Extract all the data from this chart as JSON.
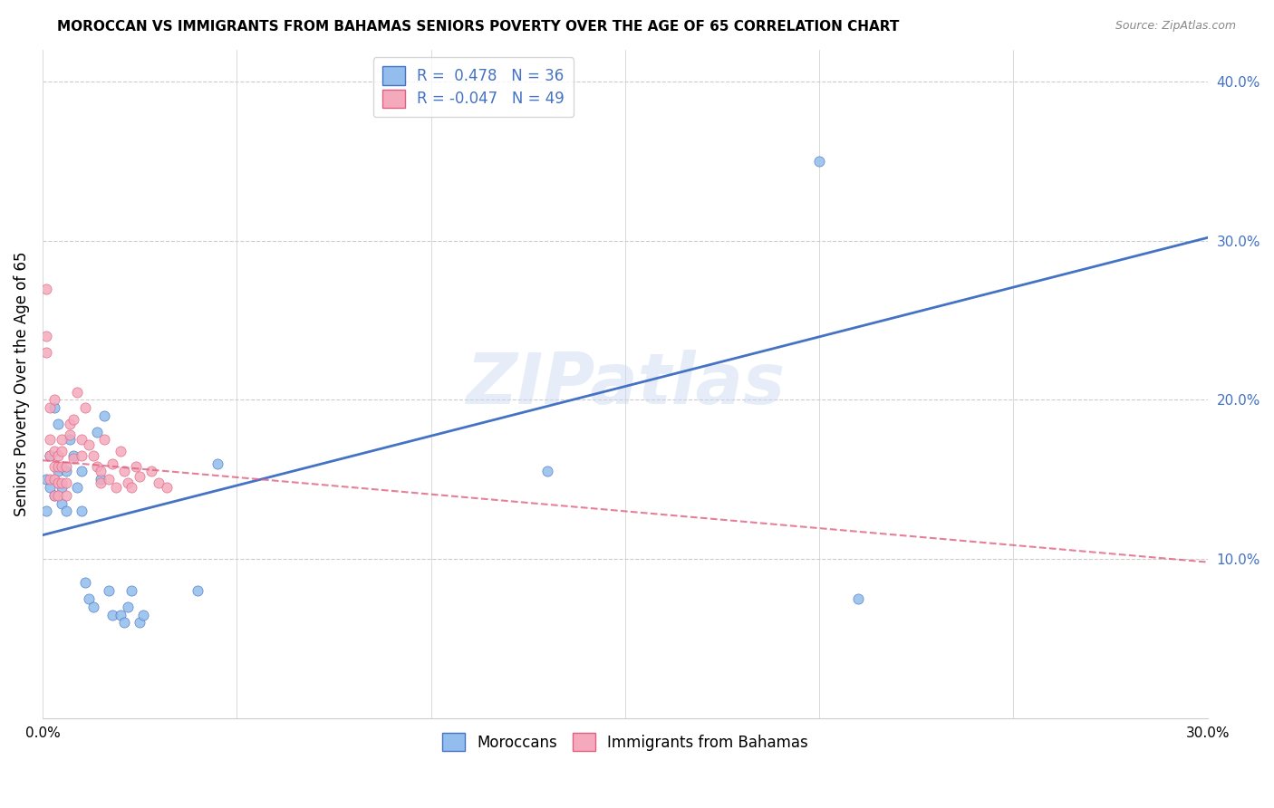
{
  "title": "MOROCCAN VS IMMIGRANTS FROM BAHAMAS SENIORS POVERTY OVER THE AGE OF 65 CORRELATION CHART",
  "source": "Source: ZipAtlas.com",
  "ylabel": "Seniors Poverty Over the Age of 65",
  "xlim": [
    0.0,
    0.3
  ],
  "ylim": [
    0.0,
    0.42
  ],
  "xtick_pos": [
    0.0,
    0.05,
    0.1,
    0.15,
    0.2,
    0.25,
    0.3
  ],
  "xtick_labels": [
    "0.0%",
    "",
    "",
    "",
    "",
    "",
    "30.0%"
  ],
  "ytick_positions_right": [
    0.1,
    0.2,
    0.3,
    0.4
  ],
  "ytick_labels_right": [
    "10.0%",
    "20.0%",
    "30.0%",
    "40.0%"
  ],
  "legend_r_moroccan": "0.478",
  "legend_n_moroccan": "36",
  "legend_r_bahamas": "-0.047",
  "legend_n_bahamas": "49",
  "color_moroccan": "#92BDEC",
  "color_bahamas": "#F4AABC",
  "color_line_moroccan": "#4472C4",
  "color_line_bahamas": "#E06080",
  "watermark": "ZIPatlas",
  "moroccan_x": [
    0.001,
    0.001,
    0.002,
    0.002,
    0.003,
    0.003,
    0.004,
    0.004,
    0.005,
    0.005,
    0.006,
    0.006,
    0.007,
    0.008,
    0.009,
    0.01,
    0.01,
    0.011,
    0.012,
    0.013,
    0.014,
    0.015,
    0.016,
    0.017,
    0.018,
    0.02,
    0.021,
    0.022,
    0.023,
    0.025,
    0.026,
    0.04,
    0.045,
    0.13,
    0.2,
    0.21
  ],
  "moroccan_y": [
    0.15,
    0.13,
    0.145,
    0.165,
    0.195,
    0.14,
    0.155,
    0.185,
    0.135,
    0.145,
    0.13,
    0.155,
    0.175,
    0.165,
    0.145,
    0.13,
    0.155,
    0.085,
    0.075,
    0.07,
    0.18,
    0.15,
    0.19,
    0.08,
    0.065,
    0.065,
    0.06,
    0.07,
    0.08,
    0.06,
    0.065,
    0.08,
    0.16,
    0.155,
    0.35,
    0.075
  ],
  "bahamas_x": [
    0.001,
    0.001,
    0.001,
    0.002,
    0.002,
    0.002,
    0.002,
    0.003,
    0.003,
    0.003,
    0.003,
    0.003,
    0.004,
    0.004,
    0.004,
    0.004,
    0.005,
    0.005,
    0.005,
    0.005,
    0.006,
    0.006,
    0.006,
    0.007,
    0.007,
    0.008,
    0.008,
    0.009,
    0.01,
    0.01,
    0.011,
    0.012,
    0.013,
    0.014,
    0.015,
    0.015,
    0.016,
    0.017,
    0.018,
    0.019,
    0.02,
    0.021,
    0.022,
    0.023,
    0.024,
    0.025,
    0.028,
    0.03,
    0.032
  ],
  "bahamas_y": [
    0.27,
    0.24,
    0.23,
    0.195,
    0.175,
    0.165,
    0.15,
    0.168,
    0.158,
    0.15,
    0.14,
    0.2,
    0.165,
    0.158,
    0.148,
    0.14,
    0.175,
    0.168,
    0.158,
    0.148,
    0.158,
    0.148,
    0.14,
    0.185,
    0.178,
    0.163,
    0.188,
    0.205,
    0.175,
    0.165,
    0.195,
    0.172,
    0.165,
    0.158,
    0.148,
    0.155,
    0.175,
    0.15,
    0.16,
    0.145,
    0.168,
    0.155,
    0.148,
    0.145,
    0.158,
    0.152,
    0.155,
    0.148,
    0.145
  ],
  "moroccan_line_x0": 0.0,
  "moroccan_line_x1": 0.3,
  "moroccan_line_y0": 0.115,
  "moroccan_line_y1": 0.302,
  "bahamas_line_x0": 0.0,
  "bahamas_line_x1": 0.3,
  "bahamas_line_y0": 0.162,
  "bahamas_line_y1": 0.098
}
